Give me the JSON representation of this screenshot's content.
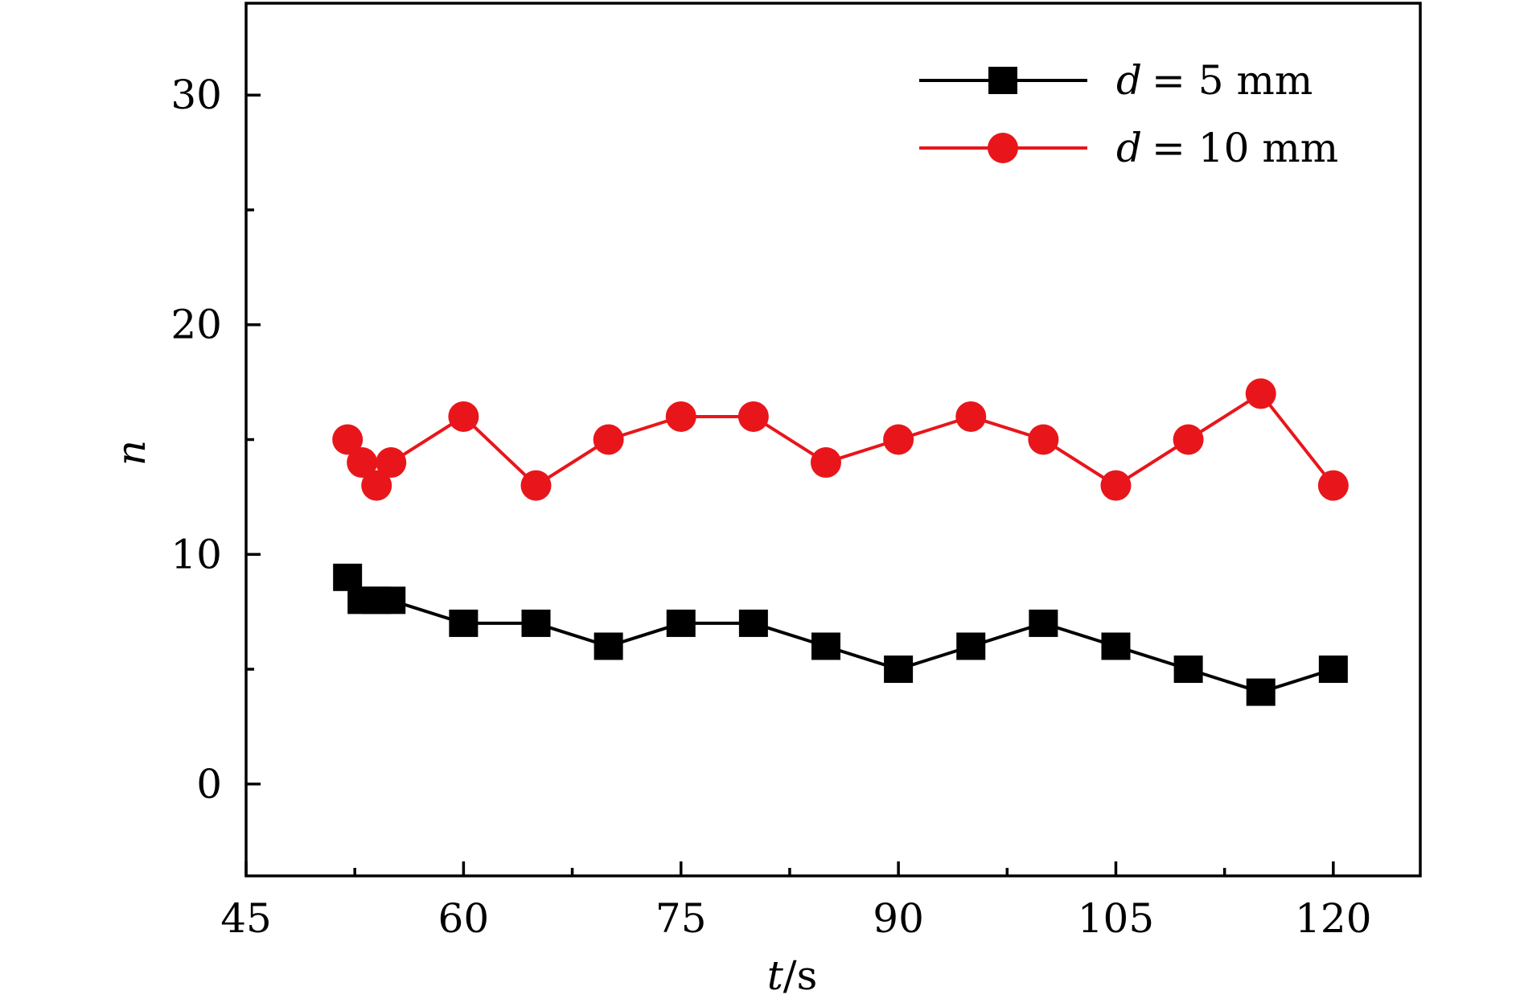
{
  "chart_data": {
    "type": "line",
    "title": "",
    "xlabel_italic": "t",
    "xlabel_unit": "/s",
    "ylabel": "n",
    "xlim": [
      45,
      126
    ],
    "ylim": [
      -4,
      34
    ],
    "xticks": [
      45,
      60,
      75,
      90,
      105,
      120
    ],
    "yticks": [
      0,
      10,
      20,
      30
    ],
    "grid": false,
    "legend_position": "top-right",
    "x": [
      52,
      53,
      54,
      55,
      60,
      65,
      70,
      75,
      80,
      85,
      90,
      95,
      100,
      105,
      110,
      115,
      120
    ],
    "series": [
      {
        "name": "d = 5 mm",
        "legend_var": "d",
        "legend_rest": "= 5 mm",
        "color": "#000000",
        "marker": "square",
        "values": [
          9,
          8,
          8,
          8,
          7,
          7,
          6,
          7,
          7,
          6,
          5,
          6,
          7,
          6,
          5,
          4,
          5
        ]
      },
      {
        "name": "d = 10 mm",
        "legend_var": "d",
        "legend_rest": "= 10 mm",
        "color": "#e8161b",
        "marker": "circle",
        "values": [
          15,
          14,
          13,
          14,
          16,
          13,
          15,
          16,
          16,
          14,
          15,
          16,
          15,
          13,
          15,
          17,
          13
        ]
      }
    ]
  }
}
